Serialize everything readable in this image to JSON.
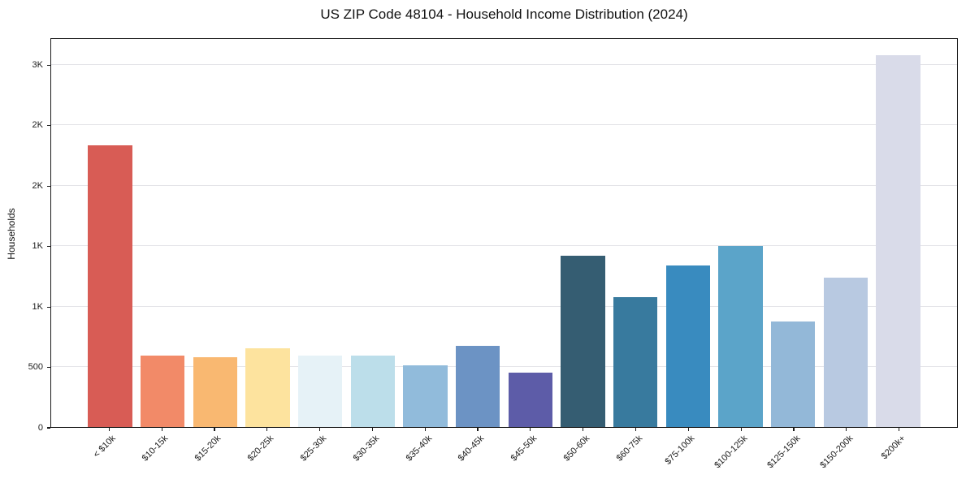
{
  "chart_data": {
    "type": "bar",
    "title": "US ZIP Code 48104 - Household Income Distribution (2024)",
    "xlabel": "",
    "ylabel": "Households",
    "categories": [
      "< $10k",
      "$10-15k",
      "$15-20k",
      "$20-25k",
      "$25-30k",
      "$30-35k",
      "$35-40k",
      "$40-45k",
      "$45-50k",
      "$50-60k",
      "$60-75k",
      "$75-100k",
      "$100-125k",
      "$125-150k",
      "$150-200k",
      "$200k+"
    ],
    "values": [
      2330,
      590,
      575,
      650,
      590,
      590,
      510,
      675,
      450,
      1420,
      1075,
      1340,
      1500,
      875,
      1235,
      3080
    ],
    "bar_colors": [
      "#d85c55",
      "#f28a68",
      "#f9b871",
      "#fde39e",
      "#e6f2f7",
      "#bcdeea",
      "#91bbdb",
      "#6c93c4",
      "#5d5ca8",
      "#355d72",
      "#387a9e",
      "#398bbf",
      "#5ba4c9",
      "#93b8d8",
      "#b8c9e1",
      "#d9dbe9"
    ],
    "ylim": [
      0,
      3225
    ],
    "yticks": {
      "values": [
        0,
        500,
        1000,
        1500,
        2000,
        2500,
        3000
      ],
      "labels": [
        "0",
        "500",
        "1K",
        "1K",
        "2K",
        "2K",
        "3K"
      ]
    },
    "grid": "horizontal gridlines on",
    "legend": "none",
    "gridline_color": "#e4e4e8",
    "spine_color": "#1a1a1a",
    "background_color": "#ffffff"
  }
}
